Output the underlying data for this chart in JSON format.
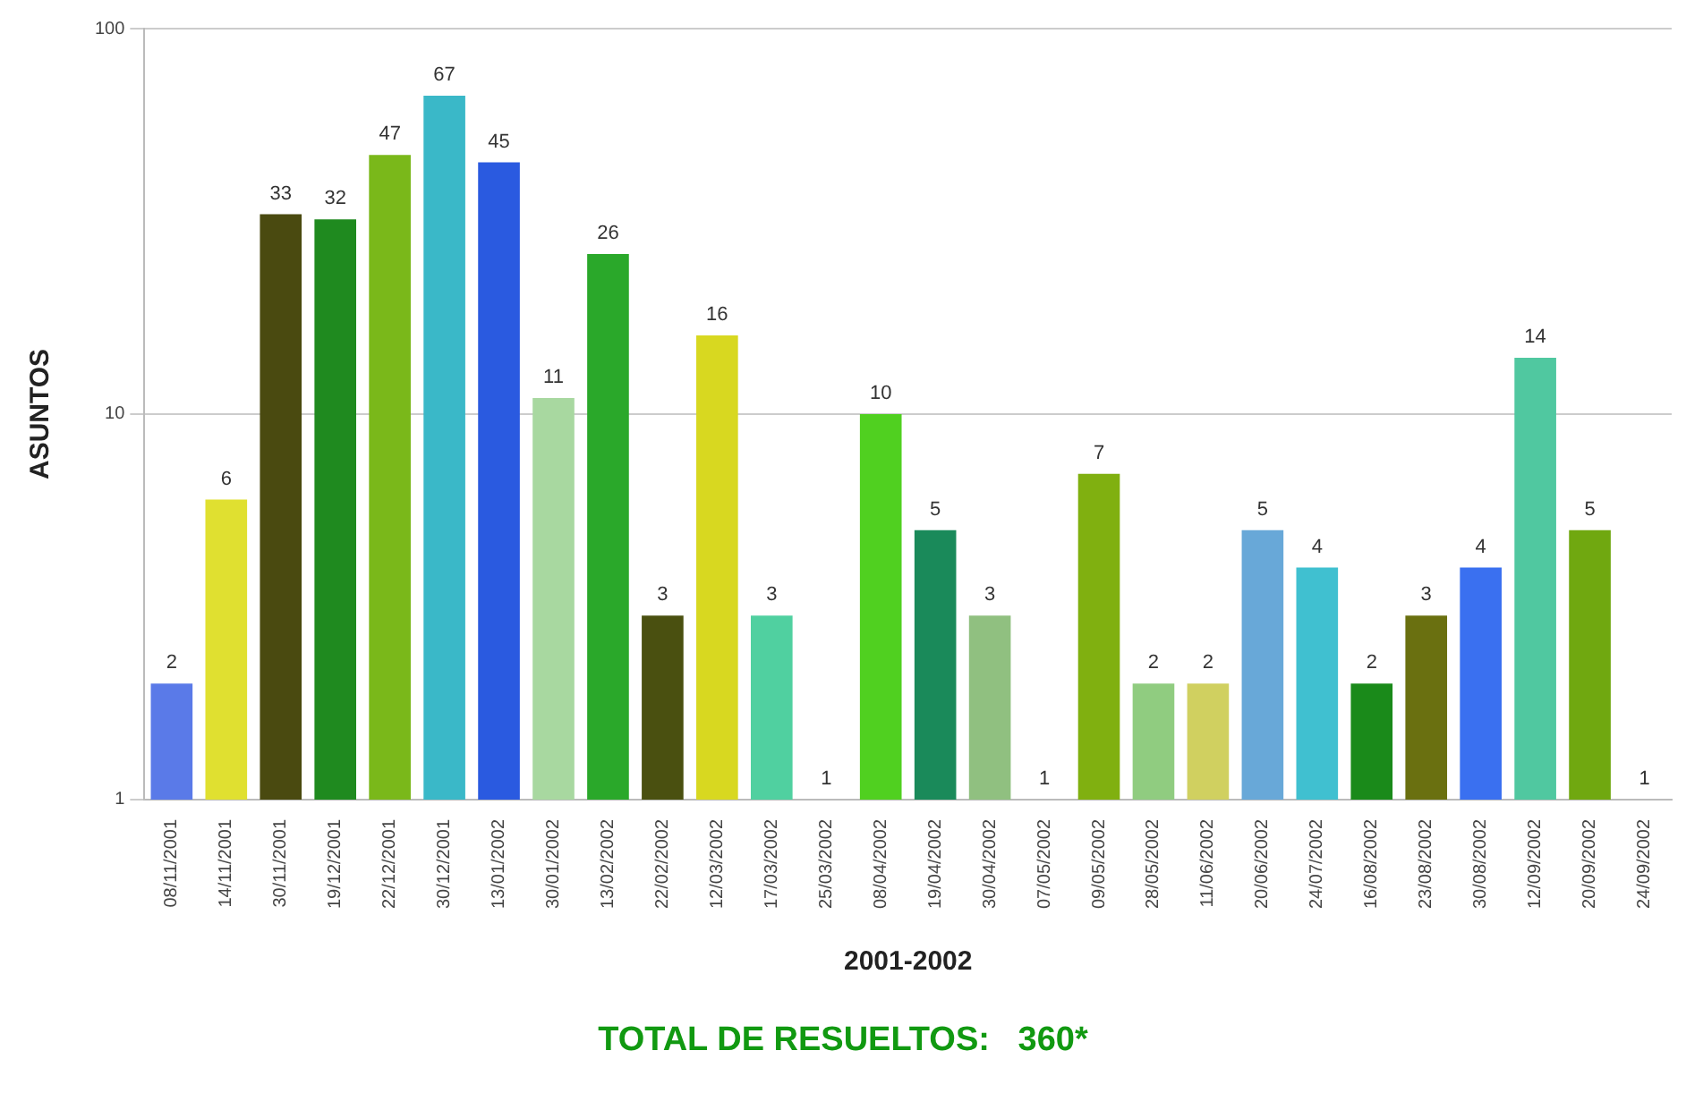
{
  "chart_data": {
    "type": "bar",
    "xlabel": "2001-2002",
    "ylabel": "ASUNTOS",
    "categories": [
      "08/11/2001",
      "14/11/2001",
      "30/11/2001",
      "19/12/2001",
      "22/12/2001",
      "30/12/2001",
      "13/01/2002",
      "30/01/2002",
      "13/02/2002",
      "22/02/2002",
      "12/03/2002",
      "17/03/2002",
      "25/03/2002",
      "08/04/2002",
      "19/04/2002",
      "30/04/2002",
      "07/05/2002",
      "09/05/2002",
      "28/05/2002",
      "11/06/2002",
      "20/06/2002",
      "24/07/2002",
      "16/08/2002",
      "23/08/2002",
      "30/08/2002",
      "12/09/2002",
      "20/09/2002",
      "24/09/2002"
    ],
    "values": [
      2,
      6,
      33,
      32,
      47,
      67,
      45,
      11,
      26,
      3,
      16,
      3,
      1,
      10,
      5,
      3,
      1,
      7,
      2,
      2,
      5,
      4,
      2,
      3,
      4,
      14,
      5,
      1
    ],
    "colors": [
      "#5a7ae8",
      "#e0e030",
      "#4a4a10",
      "#1f8a1f",
      "#7ab81a",
      "#3ab8c8",
      "#2a5ae0",
      "#a8d8a0",
      "#2aa82a",
      "#4a5010",
      "#d8d820",
      "#50d0a0",
      "#d8ecc8",
      "#50d020",
      "#1a8a5a",
      "#90c080",
      "#60d8e0",
      "#80b010",
      "#90cc80",
      "#d0d060",
      "#68a8d8",
      "#40c0d0",
      "#1a8a1a",
      "#6a7010",
      "#3a70f0",
      "#50c8a0",
      "#70a810",
      "#d8a830"
    ],
    "log": "y",
    "ylim": [
      1,
      100
    ],
    "yticks": [
      1,
      10,
      100
    ],
    "grid": "y",
    "legend": false,
    "data_labels": true,
    "annotations": [
      "TOTAL DE RESUELTOS:   360*"
    ]
  }
}
